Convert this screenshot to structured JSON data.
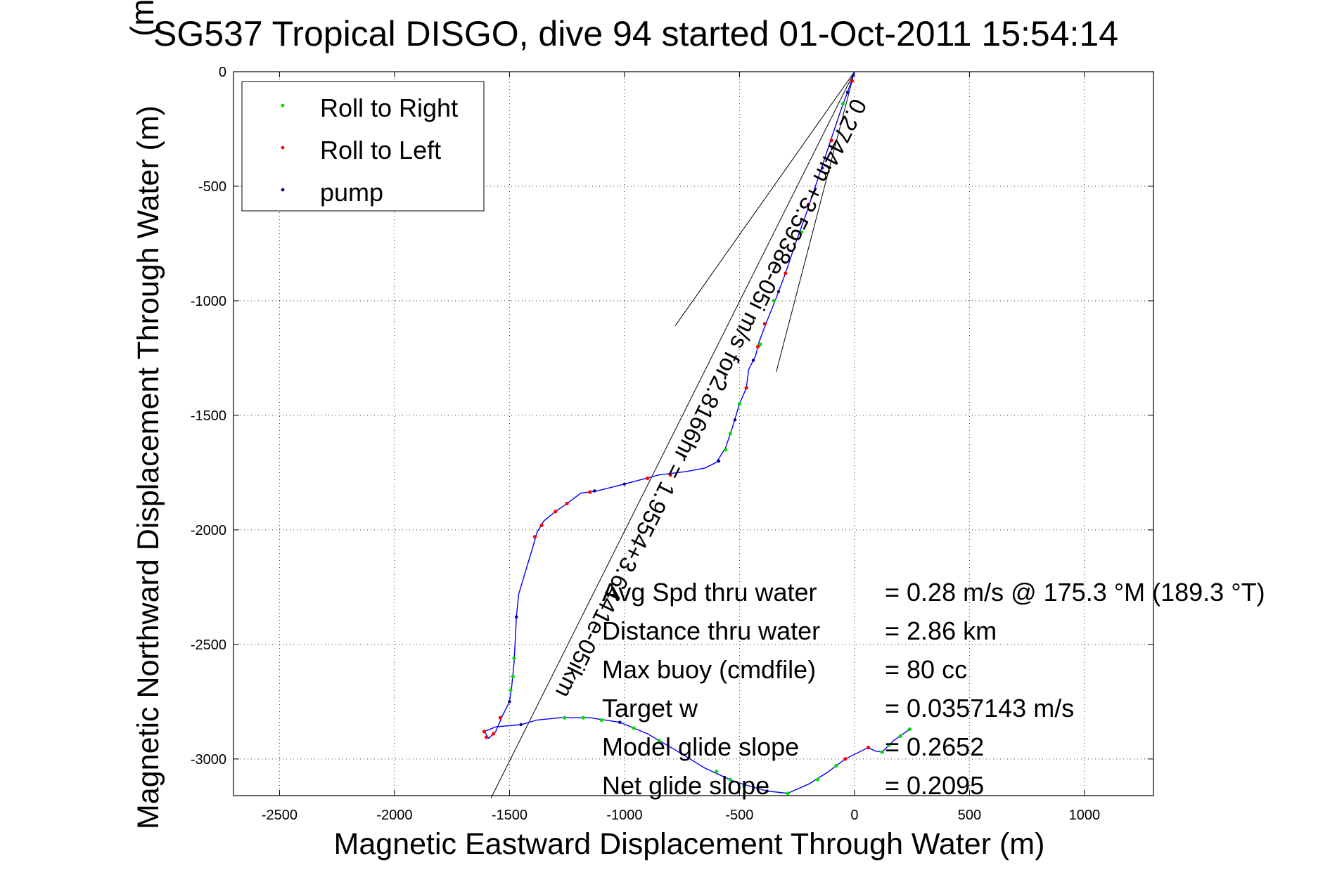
{
  "chart_data": {
    "type": "scatter",
    "title": "SG537 Tropical DISGO, dive 94 started 01-Oct-2011 15:54:14",
    "title_overlay": "(m)",
    "xlabel": "Magnetic Eastward Displacement Through Water (m)",
    "ylabel": "Magnetic Northward Displacement Through Water (m)",
    "xlim": [
      -2700,
      1300
    ],
    "ylim": [
      -3160,
      0
    ],
    "xticks": [
      -2500,
      -2000,
      -1500,
      -1000,
      -500,
      0,
      500,
      1000
    ],
    "yticks": [
      0,
      -500,
      -1000,
      -1500,
      -2000,
      -2500,
      -3000
    ],
    "grid": true,
    "legend_position": "top-left",
    "legend": [
      {
        "label": "Roll to Right",
        "color": "#00dd00"
      },
      {
        "label": "Roll to Left",
        "color": "#ff0000"
      },
      {
        "label": "pump",
        "color": "#000080"
      }
    ],
    "track_color": "#0000ff",
    "track": [
      [
        0,
        0
      ],
      [
        -20,
        -60
      ],
      [
        -60,
        -170
      ],
      [
        -110,
        -320
      ],
      [
        -160,
        -470
      ],
      [
        -210,
        -620
      ],
      [
        -260,
        -760
      ],
      [
        -300,
        -880
      ],
      [
        -345,
        -1000
      ],
      [
        -385,
        -1100
      ],
      [
        -415,
        -1180
      ],
      [
        -430,
        -1240
      ],
      [
        -460,
        -1300
      ],
      [
        -470,
        -1380
      ],
      [
        -500,
        -1450
      ],
      [
        -530,
        -1550
      ],
      [
        -560,
        -1640
      ],
      [
        -600,
        -1705
      ],
      [
        -650,
        -1730
      ],
      [
        -730,
        -1745
      ],
      [
        -850,
        -1760
      ],
      [
        -1000,
        -1800
      ],
      [
        -1120,
        -1830
      ],
      [
        -1190,
        -1840
      ],
      [
        -1250,
        -1885
      ],
      [
        -1300,
        -1920
      ],
      [
        -1350,
        -1960
      ],
      [
        -1380,
        -2010
      ],
      [
        -1400,
        -2080
      ],
      [
        -1430,
        -2180
      ],
      [
        -1460,
        -2280
      ],
      [
        -1470,
        -2380
      ],
      [
        -1475,
        -2480
      ],
      [
        -1480,
        -2580
      ],
      [
        -1490,
        -2680
      ],
      [
        -1500,
        -2750
      ],
      [
        -1530,
        -2810
      ],
      [
        -1560,
        -2880
      ],
      [
        -1590,
        -2910
      ],
      [
        -1610,
        -2880
      ],
      [
        -1560,
        -2860
      ],
      [
        -1450,
        -2850
      ],
      [
        -1380,
        -2830
      ],
      [
        -1280,
        -2820
      ],
      [
        -1150,
        -2820
      ],
      [
        -1020,
        -2840
      ],
      [
        -900,
        -2890
      ],
      [
        -780,
        -2960
      ],
      [
        -650,
        -3040
      ],
      [
        -520,
        -3100
      ],
      [
        -380,
        -3140
      ],
      [
        -290,
        -3150
      ],
      [
        -200,
        -3110
      ],
      [
        -120,
        -3060
      ],
      [
        -40,
        -3000
      ],
      [
        60,
        -2950
      ],
      [
        90,
        -2965
      ],
      [
        120,
        -2970
      ],
      [
        170,
        -2920
      ],
      [
        240,
        -2870
      ]
    ],
    "roll_right": [
      [
        -50,
        -140
      ],
      [
        -230,
        -700
      ],
      [
        -350,
        -1000
      ],
      [
        -410,
        -1190
      ],
      [
        -500,
        -1450
      ],
      [
        -540,
        -1580
      ],
      [
        -560,
        -1650
      ],
      [
        -1480,
        -2560
      ],
      [
        -1485,
        -2640
      ],
      [
        -1495,
        -2700
      ],
      [
        -1260,
        -2820
      ],
      [
        -1180,
        -2820
      ],
      [
        -1100,
        -2830
      ],
      [
        -960,
        -2865
      ],
      [
        -850,
        -2920
      ],
      [
        -600,
        -3055
      ],
      [
        -540,
        -3090
      ],
      [
        -480,
        -3120
      ],
      [
        -290,
        -3150
      ],
      [
        -160,
        -3090
      ],
      [
        -80,
        -3030
      ],
      [
        120,
        -2970
      ],
      [
        150,
        -2940
      ],
      [
        200,
        -2900
      ],
      [
        240,
        -2870
      ]
    ],
    "roll_left": [
      [
        -10,
        -40
      ],
      [
        -100,
        -300
      ],
      [
        -200,
        -580
      ],
      [
        -300,
        -880
      ],
      [
        -390,
        -1100
      ],
      [
        -420,
        -1200
      ],
      [
        -470,
        -1380
      ],
      [
        -800,
        -1760
      ],
      [
        -900,
        -1775
      ],
      [
        -1150,
        -1835
      ],
      [
        -1250,
        -1885
      ],
      [
        -1300,
        -1920
      ],
      [
        -1360,
        -1980
      ],
      [
        -1390,
        -2030
      ],
      [
        -1540,
        -2820
      ],
      [
        -1570,
        -2890
      ],
      [
        -1600,
        -2905
      ],
      [
        -1610,
        -2880
      ],
      [
        -40,
        -3000
      ],
      [
        60,
        -2950
      ]
    ],
    "pump": [
      [
        -30,
        -90
      ],
      [
        -140,
        -420
      ],
      [
        -330,
        -960
      ],
      [
        -440,
        -1260
      ],
      [
        -520,
        -1520
      ],
      [
        -590,
        -1700
      ],
      [
        -1000,
        -1800
      ],
      [
        -1130,
        -1830
      ],
      [
        -1470,
        -2380
      ],
      [
        -1500,
        -2750
      ],
      [
        -1450,
        -2850
      ],
      [
        -1020,
        -2840
      ],
      [
        -380,
        -3140
      ]
    ],
    "current_vector": {
      "start": [
        0,
        0
      ],
      "end": [
        -1580,
        -3170
      ]
    },
    "current_fan": [
      {
        "end": [
          -780,
          -1110
        ]
      },
      {
        "end": [
          -340,
          -1310
        ]
      }
    ],
    "current_label": "0.2744m +3.5938e-05i m/s for2.8166hr = 1.9554+3.6441e-05ikm",
    "stats": [
      {
        "label": "Avg Spd thru water",
        "value": "=  0.28 m/s @ 175.3 °M (189.3 °T)"
      },
      {
        "label": "Distance thru water",
        "value": "=  2.86 km"
      },
      {
        "label": "Max buoy (cmdfile)",
        "value": "= 80 cc"
      },
      {
        "label": "Target w",
        "value": "= 0.0357143 m/s"
      },
      {
        "label": "Model glide slope",
        "value": "= 0.2652"
      },
      {
        "label": "Net glide slope",
        "value": "= 0.2095"
      }
    ]
  }
}
